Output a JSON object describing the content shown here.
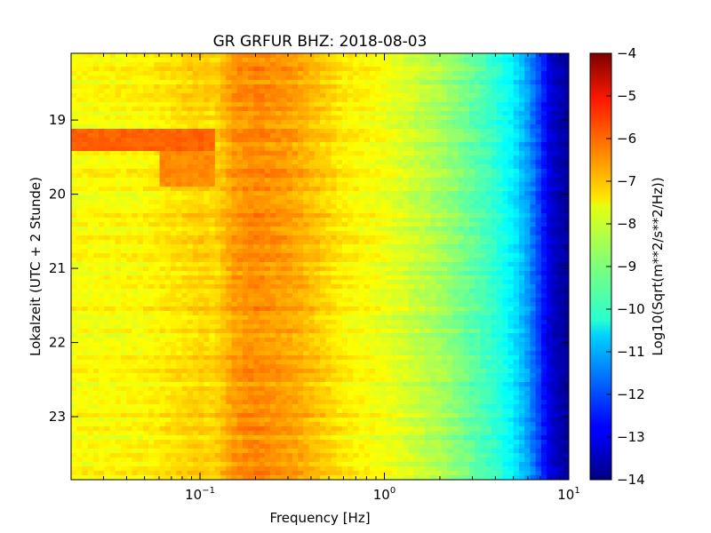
{
  "chart_data": {
    "type": "heatmap",
    "title": "GR GRFUR BHZ: 2018-08-03",
    "xlabel": "Frequency [Hz]",
    "ylabel": "Lokalzeit (UTC + 2 Stunde)",
    "x_scale": "log",
    "xlim": [
      0.02,
      10
    ],
    "x_ticks": [
      {
        "value": 0.1,
        "base": "10",
        "exp": "−1"
      },
      {
        "value": 1,
        "base": "10",
        "exp": "0"
      },
      {
        "value": 10,
        "base": "10",
        "exp": "1"
      }
    ],
    "ylim": [
      23.85,
      18.1
    ],
    "y_inverted": true,
    "y_ticks": [
      19,
      20,
      21,
      22,
      23
    ],
    "colorbar": {
      "label": "Log10(Sqrt(m**2/s**2/Hz))",
      "range": [
        -14,
        -4
      ],
      "colormap": "jet",
      "ticks": [
        -4,
        -5,
        -6,
        -7,
        -8,
        -9,
        -10,
        -11,
        -12,
        -13,
        -14
      ]
    },
    "spectrum_profile": [
      {
        "f": 0.02,
        "v": -7.8
      },
      {
        "f": 0.05,
        "v": -7.7
      },
      {
        "f": 0.1,
        "v": -7.3
      },
      {
        "f": 0.12,
        "v": -7.4
      },
      {
        "f": 0.15,
        "v": -6.8
      },
      {
        "f": 0.2,
        "v": -6.6
      },
      {
        "f": 0.3,
        "v": -6.8
      },
      {
        "f": 0.4,
        "v": -7.1
      },
      {
        "f": 0.6,
        "v": -7.6
      },
      {
        "f": 1.0,
        "v": -7.9
      },
      {
        "f": 2.0,
        "v": -8.6
      },
      {
        "f": 3.0,
        "v": -9.3
      },
      {
        "f": 4.0,
        "v": -9.8
      },
      {
        "f": 5.0,
        "v": -10.4
      },
      {
        "f": 6.0,
        "v": -11.2
      },
      {
        "f": 7.0,
        "v": -12.2
      },
      {
        "f": 8.0,
        "v": -13.2
      },
      {
        "f": 10.0,
        "v": -13.8
      }
    ],
    "events": [
      {
        "t_start": 19.1,
        "t_end": 19.4,
        "f_max": 0.12,
        "v": -6.2
      },
      {
        "t_start": 19.4,
        "t_end": 19.9,
        "f_min": 0.06,
        "f_max": 0.12,
        "v": -6.6
      }
    ]
  }
}
